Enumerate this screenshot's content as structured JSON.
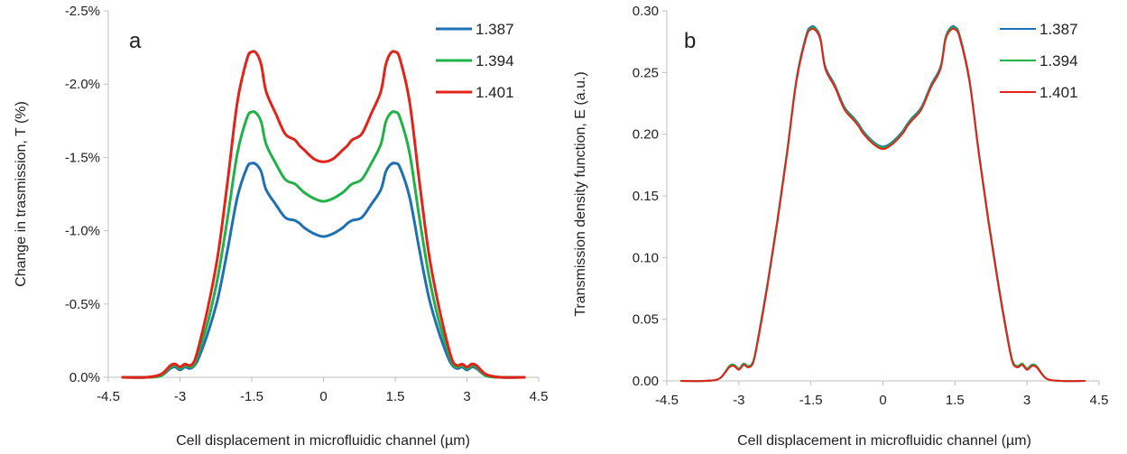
{
  "chart_data": [
    {
      "type": "line",
      "panel_label": "a",
      "xlabel": "Cell displacement in microfluidic channel (µm)",
      "ylabel": "Change in trasmission, T (%)",
      "xlim": [
        -4.5,
        4.5
      ],
      "ylim": [
        0,
        -2.5
      ],
      "y_inverted": true,
      "grid": false,
      "legend_position": "top-right",
      "x_ticks": [
        -4.5,
        -3,
        -1.5,
        0,
        1.5,
        3,
        4.5
      ],
      "x_tick_labels": [
        "-4.5",
        "-3",
        "-1.5",
        "0",
        "1.5",
        "3",
        "4.5"
      ],
      "y_ticks": [
        0,
        -0.5,
        -1.0,
        -1.5,
        -2.0,
        -2.5
      ],
      "y_tick_labels": [
        "0.0%",
        "-0.5%",
        "-1.0%",
        "-1.5%",
        "-2.0%",
        "-2.5%"
      ],
      "x": [
        -4.2,
        -3.7,
        -3.4,
        -3.2,
        -3.1,
        -3.0,
        -2.9,
        -2.8,
        -2.7,
        -2.6,
        -2.4,
        -2.2,
        -2.0,
        -1.8,
        -1.6,
        -1.5,
        -1.4,
        -1.3,
        -1.2,
        -1.0,
        -0.8,
        -0.6,
        -0.5,
        -0.4,
        -0.2,
        0.0,
        0.2,
        0.4,
        0.5,
        0.6,
        0.8,
        1.0,
        1.2,
        1.3,
        1.4,
        1.5,
        1.6,
        1.8,
        2.0,
        2.2,
        2.4,
        2.6,
        2.7,
        2.8,
        2.9,
        3.0,
        3.1,
        3.2,
        3.4,
        3.7,
        4.2
      ],
      "series": [
        {
          "name": "1.387",
          "color": "#1f6fb4",
          "values": [
            0,
            0,
            -0.01,
            -0.06,
            -0.07,
            -0.05,
            -0.07,
            -0.06,
            -0.08,
            -0.14,
            -0.32,
            -0.55,
            -0.88,
            -1.23,
            -1.43,
            -1.46,
            -1.45,
            -1.4,
            -1.28,
            -1.18,
            -1.09,
            -1.07,
            -1.05,
            -1.02,
            -0.98,
            -0.96,
            -0.98,
            -1.02,
            -1.05,
            -1.07,
            -1.09,
            -1.18,
            -1.28,
            -1.4,
            -1.45,
            -1.46,
            -1.43,
            -1.23,
            -0.88,
            -0.55,
            -0.32,
            -0.14,
            -0.08,
            -0.06,
            -0.07,
            -0.05,
            -0.07,
            -0.06,
            -0.01,
            0,
            0
          ]
        },
        {
          "name": "1.394",
          "color": "#22b04a",
          "values": [
            0,
            0,
            -0.01,
            -0.07,
            -0.08,
            -0.06,
            -0.08,
            -0.07,
            -0.09,
            -0.18,
            -0.4,
            -0.7,
            -1.1,
            -1.53,
            -1.77,
            -1.81,
            -1.8,
            -1.74,
            -1.59,
            -1.46,
            -1.35,
            -1.32,
            -1.29,
            -1.26,
            -1.22,
            -1.2,
            -1.22,
            -1.26,
            -1.29,
            -1.32,
            -1.35,
            -1.46,
            -1.59,
            -1.74,
            -1.8,
            -1.81,
            -1.77,
            -1.53,
            -1.1,
            -0.7,
            -0.4,
            -0.18,
            -0.09,
            -0.07,
            -0.08,
            -0.06,
            -0.08,
            -0.07,
            -0.01,
            0,
            0
          ]
        },
        {
          "name": "1.401",
          "color": "#e2231a",
          "values": [
            0,
            0,
            -0.02,
            -0.08,
            -0.09,
            -0.07,
            -0.09,
            -0.08,
            -0.11,
            -0.22,
            -0.5,
            -0.85,
            -1.35,
            -1.88,
            -2.17,
            -2.22,
            -2.21,
            -2.13,
            -1.95,
            -1.8,
            -1.66,
            -1.62,
            -1.58,
            -1.55,
            -1.49,
            -1.47,
            -1.49,
            -1.55,
            -1.58,
            -1.62,
            -1.66,
            -1.8,
            -1.95,
            -2.13,
            -2.21,
            -2.22,
            -2.17,
            -1.88,
            -1.35,
            -0.85,
            -0.5,
            -0.22,
            -0.11,
            -0.08,
            -0.09,
            -0.07,
            -0.09,
            -0.08,
            -0.02,
            0,
            0
          ]
        }
      ]
    },
    {
      "type": "line",
      "panel_label": "b",
      "xlabel": "Cell displacement in microfluidic channel (µm)",
      "ylabel": "Transmission density function, E (a.u.)",
      "xlim": [
        -4.5,
        4.5
      ],
      "ylim": [
        0,
        0.3
      ],
      "y_inverted": false,
      "grid": false,
      "legend_position": "top-right",
      "x_ticks": [
        -4.5,
        -3,
        -1.5,
        0,
        1.5,
        3,
        4.5
      ],
      "x_tick_labels": [
        "-4.5",
        "-3",
        "-1.5",
        "0",
        "1.5",
        "3",
        "4.5"
      ],
      "y_ticks": [
        0,
        0.05,
        0.1,
        0.15,
        0.2,
        0.25,
        0.3
      ],
      "y_tick_labels": [
        "0.00",
        "0.05",
        "0.10",
        "0.15",
        "0.20",
        "0.25",
        "0.30"
      ],
      "x": [
        -4.2,
        -3.7,
        -3.4,
        -3.2,
        -3.1,
        -3.0,
        -2.9,
        -2.8,
        -2.7,
        -2.6,
        -2.4,
        -2.2,
        -2.0,
        -1.8,
        -1.6,
        -1.5,
        -1.4,
        -1.3,
        -1.2,
        -1.0,
        -0.8,
        -0.6,
        -0.5,
        -0.4,
        -0.2,
        0.0,
        0.2,
        0.4,
        0.5,
        0.6,
        0.8,
        1.0,
        1.2,
        1.3,
        1.4,
        1.5,
        1.6,
        1.8,
        2.0,
        2.2,
        2.4,
        2.6,
        2.7,
        2.8,
        2.9,
        3.0,
        3.1,
        3.2,
        3.4,
        3.7,
        4.2
      ],
      "series": [
        {
          "name": "1.387",
          "color": "#1f6fb4",
          "values": [
            0,
            0,
            0.002,
            0.012,
            0.013,
            0.01,
            0.014,
            0.012,
            0.016,
            0.035,
            0.08,
            0.13,
            0.185,
            0.245,
            0.28,
            0.287,
            0.286,
            0.278,
            0.255,
            0.24,
            0.222,
            0.213,
            0.208,
            0.202,
            0.194,
            0.19,
            0.194,
            0.202,
            0.208,
            0.213,
            0.222,
            0.24,
            0.255,
            0.278,
            0.286,
            0.287,
            0.28,
            0.245,
            0.185,
            0.13,
            0.08,
            0.035,
            0.016,
            0.012,
            0.014,
            0.01,
            0.013,
            0.012,
            0.002,
            0,
            0
          ]
        },
        {
          "name": "1.394",
          "color": "#22b04a",
          "values": [
            0,
            0,
            0.002,
            0.012,
            0.013,
            0.01,
            0.014,
            0.012,
            0.016,
            0.034,
            0.079,
            0.129,
            0.184,
            0.244,
            0.279,
            0.286,
            0.285,
            0.277,
            0.254,
            0.239,
            0.221,
            0.212,
            0.207,
            0.201,
            0.193,
            0.189,
            0.193,
            0.201,
            0.207,
            0.212,
            0.221,
            0.239,
            0.254,
            0.277,
            0.285,
            0.286,
            0.279,
            0.244,
            0.184,
            0.129,
            0.079,
            0.034,
            0.016,
            0.012,
            0.014,
            0.01,
            0.013,
            0.012,
            0.002,
            0,
            0
          ]
        },
        {
          "name": "1.401",
          "color": "#e2231a",
          "values": [
            0,
            0,
            0.002,
            0.011,
            0.012,
            0.009,
            0.013,
            0.011,
            0.015,
            0.033,
            0.078,
            0.128,
            0.183,
            0.243,
            0.278,
            0.285,
            0.284,
            0.276,
            0.253,
            0.238,
            0.22,
            0.211,
            0.206,
            0.2,
            0.192,
            0.188,
            0.192,
            0.2,
            0.206,
            0.211,
            0.22,
            0.238,
            0.253,
            0.276,
            0.284,
            0.285,
            0.278,
            0.243,
            0.183,
            0.128,
            0.078,
            0.033,
            0.015,
            0.011,
            0.013,
            0.009,
            0.012,
            0.011,
            0.002,
            0,
            0
          ]
        }
      ]
    }
  ]
}
